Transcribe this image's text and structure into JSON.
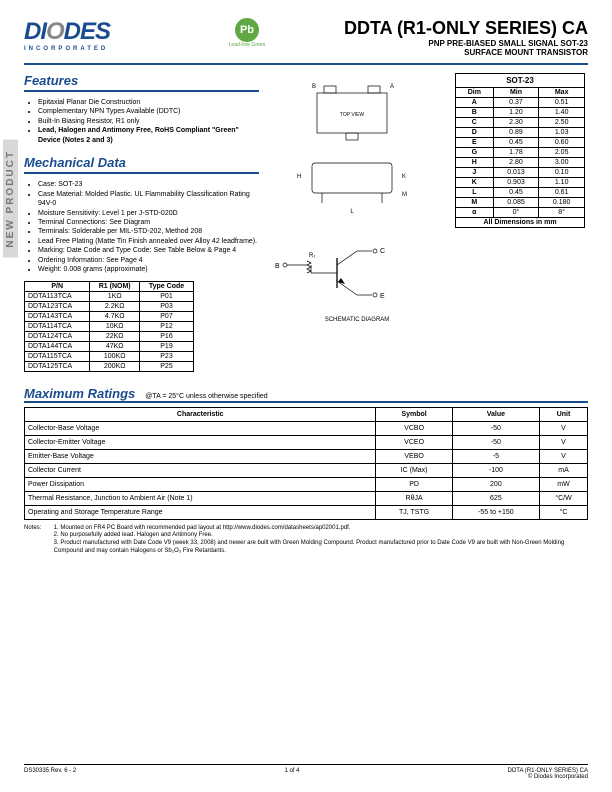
{
  "logo": {
    "text1": "DI",
    "textO": "O",
    "text2": "DES",
    "sub": "INCORPORATED"
  },
  "pbfree": {
    "badge": "Pb",
    "text": "Lead-free Green"
  },
  "title": {
    "main": "DDTA (R1-ONLY SERIES) CA",
    "sub1": "PNP PRE-BIASED SMALL SIGNAL SOT-23",
    "sub2": "SURFACE MOUNT TRANSISTOR"
  },
  "sidetab": "NEW PRODUCT",
  "sections": {
    "features": "Features",
    "mechanical": "Mechanical Data",
    "maxratings": "Maximum Ratings"
  },
  "features": [
    "Epitaxial Planar Die Construction",
    "Complementary NPN Types Available (DDTC)",
    "Built-In Biasing Resistor, R1 only",
    "Lead, Halogen and Antimony Free, RoHS Compliant \"Green\" Device (Notes 2 and 3)"
  ],
  "mechanical": [
    "Case: SOT-23",
    "Case Material: Molded Plastic. UL Flammability Classification Rating 94V-0",
    "Moisture Sensitivity: Level 1 per J-STD-020D",
    "Terminal Connections: See Diagram",
    "Terminals: Solderable per MIL-STD-202, Method 208",
    "Lead Free Plating (Matte Tin Finish annealed over Alloy 42 leadframe).",
    "Marking: Date Code and Type Code: See Table Below & Page 4",
    "Ordering Information: See Page 4",
    "Weight: 0.008 grams (approximate)"
  ],
  "pn_table": {
    "headers": [
      "P/N",
      "R1 (NOM)",
      "Type Code"
    ],
    "rows": [
      [
        "DDTA113TCA",
        "1KΩ",
        "P01"
      ],
      [
        "DDTA123TCA",
        "2.2KΩ",
        "P03"
      ],
      [
        "DDTA143TCA",
        "4.7KΩ",
        "P07"
      ],
      [
        "DDTA114TCA",
        "10KΩ",
        "P12"
      ],
      [
        "DDTA124TCA",
        "22KΩ",
        "P16"
      ],
      [
        "DDTA144TCA",
        "47KΩ",
        "P19"
      ],
      [
        "DDTA115TCA",
        "100KΩ",
        "P23"
      ],
      [
        "DDTA125TCA",
        "200KΩ",
        "P25"
      ]
    ]
  },
  "sot_table": {
    "title": "SOT-23",
    "headers": [
      "Dim",
      "Min",
      "Max"
    ],
    "rows": [
      [
        "A",
        "0.37",
        "0.51"
      ],
      [
        "B",
        "1.20",
        "1.40"
      ],
      [
        "C",
        "2.30",
        "2.50"
      ],
      [
        "D",
        "0.89",
        "1.03"
      ],
      [
        "E",
        "0.45",
        "0.60"
      ],
      [
        "G",
        "1.78",
        "2.05"
      ],
      [
        "H",
        "2.80",
        "3.00"
      ],
      [
        "J",
        "0.013",
        "0.10"
      ],
      [
        "K",
        "0.903",
        "1.10"
      ],
      [
        "L",
        "0.45",
        "0.61"
      ],
      [
        "M",
        "0.085",
        "0.180"
      ],
      [
        "α",
        "0°",
        "8°"
      ]
    ],
    "footer": "All Dimensions in mm"
  },
  "schematic_label": "SCHEMATIC DIAGRAM",
  "max_cond": "@TA = 25°C unless otherwise specified",
  "max_table": {
    "headers": [
      "Characteristic",
      "Symbol",
      "Value",
      "Unit"
    ],
    "rows": [
      [
        "Collector-Base Voltage",
        "VCBO",
        "-50",
        "V"
      ],
      [
        "Collector-Emitter Voltage",
        "VCEO",
        "-50",
        "V"
      ],
      [
        "Emitter-Base Voltage",
        "VEBO",
        "-5",
        "V"
      ],
      [
        "Collector Current",
        "IC (Max)",
        "-100",
        "mA"
      ],
      [
        "Power Dissipation",
        "PD",
        "200",
        "mW"
      ],
      [
        "Thermal Resistance, Junction to Ambient Air (Note 1)",
        "RθJA",
        "625",
        "°C/W"
      ],
      [
        "Operating and Storage Temperature Range",
        "TJ, TSTG",
        "-55 to +150",
        "°C"
      ]
    ]
  },
  "notes": {
    "label": "Notes:",
    "items": [
      "1. Mounted on FR4 PC Board with recommended pad layout at http://www.diodes.com/datasheets/ap02001.pdf.",
      "2. No purposefully added lead. Halogen and Antimony Free.",
      "3. Product manufactured with Date Code V9 (week 33, 2008) and newer are built with Green Molding Compound. Product manufactured prior to Date Code V9 are built with Non-Green Molding Compound and may contain Halogens or Sb₂O₃ Fire Retardants."
    ]
  },
  "footer": {
    "left": "DS30335 Rev. 6 - 2",
    "center": "1 of 4",
    "right1": "DDTA (R1-ONLY SERIES) CA",
    "right2": "© Diodes Incorporated"
  }
}
